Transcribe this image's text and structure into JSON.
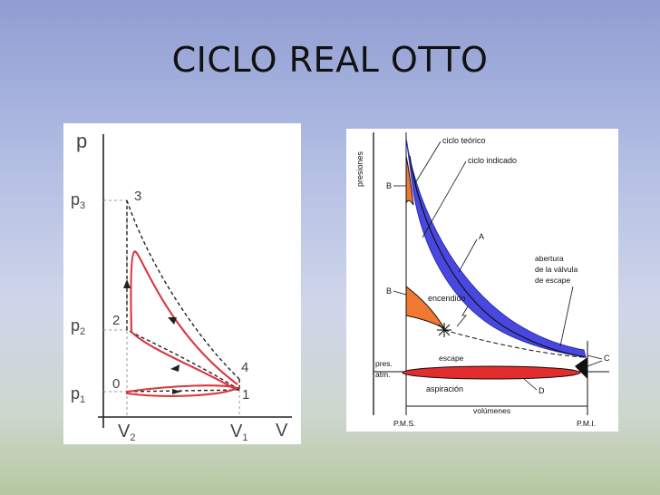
{
  "slide": {
    "title": "CICLO REAL OTTO"
  },
  "left_diagram": {
    "axis_y_label": "p",
    "axis_x_label": "V",
    "y_ticks": [
      {
        "main": "p",
        "sub": "3"
      },
      {
        "main": "p",
        "sub": "2"
      },
      {
        "main": "p",
        "sub": "1"
      }
    ],
    "x_ticks": [
      {
        "main": "V",
        "sub": "2"
      },
      {
        "main": "V",
        "sub": "1"
      }
    ],
    "points": [
      "3",
      "2",
      "0",
      "4",
      "1"
    ],
    "colors": {
      "real_cycle": "#d9363e",
      "theoretical_cycle": "#222222"
    }
  },
  "right_diagram": {
    "y_axis_label": "presiones",
    "x_axis_label": "volúmenes",
    "bottom_labels": [
      "P.M.S.",
      "P.M.I."
    ],
    "atm_label_lines": [
      "pres.",
      "atm."
    ],
    "annotations": {
      "ciclo_teorico": "ciclo teórico",
      "ciclo_indicado": "ciclo indicado",
      "A": "A",
      "B_top": "B",
      "B_bottom": "B",
      "C": "C",
      "D": "D",
      "abertura": [
        "abertura",
        "de la válvula",
        "de escape"
      ],
      "encendido": "encendido",
      "escape": "escape",
      "aspiracion": "aspiración"
    },
    "colors": {
      "work_area": "#4848e0",
      "loss_area": "#f07830",
      "pumping_loop": "#e32c2c"
    }
  }
}
